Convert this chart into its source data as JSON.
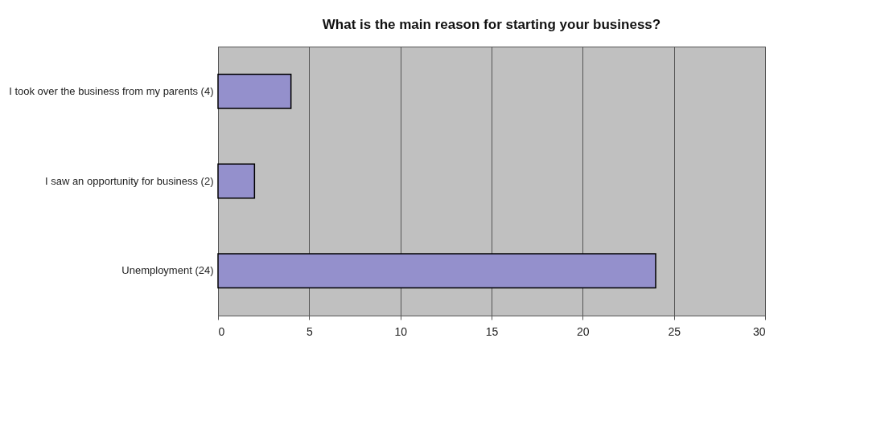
{
  "chart_data": {
    "type": "bar",
    "orientation": "horizontal",
    "title": "What is the main reason for starting your business?",
    "categories": [
      "I took over the business from my parents (4)",
      "I saw an opportunity for business (2)",
      "Unemployment (24)"
    ],
    "values": [
      4,
      2,
      24
    ],
    "color": "#9490cc",
    "xlim": [
      0,
      30
    ],
    "xticks": [
      0,
      5,
      10,
      15,
      20,
      25,
      30
    ],
    "grid": "x"
  }
}
